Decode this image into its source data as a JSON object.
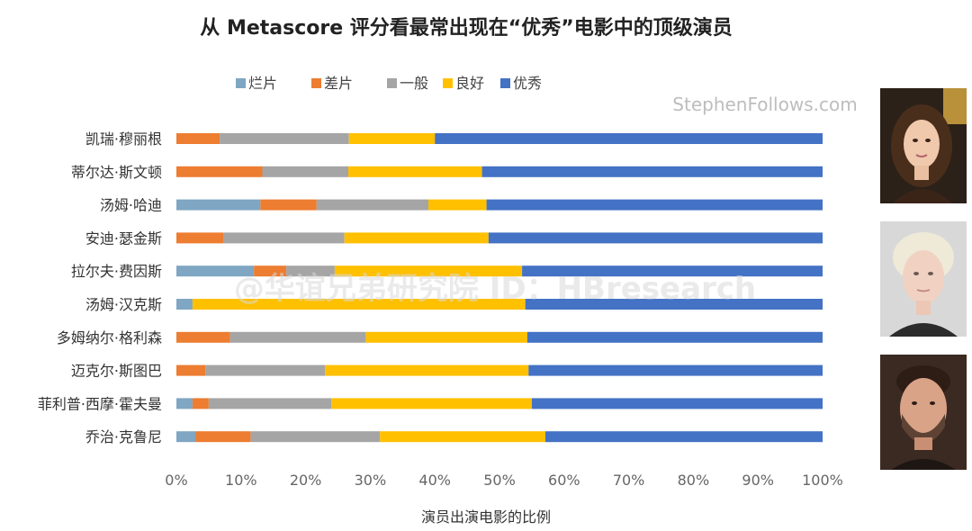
{
  "credit": "StephenFollows.com",
  "watermark": "@华谊兄弟研究院 ID：HBresearch",
  "colors": {
    "烂片": "#7fa6c2",
    "差片": "#ed7d31",
    "一般": "#a5a5a5",
    "良好": "#ffc000",
    "优秀": "#4472c4"
  },
  "photos": [
    {
      "name": "portrait-woman-dark-hair-icon"
    },
    {
      "name": "portrait-platinum-hair-icon"
    },
    {
      "name": "portrait-man-beard-icon"
    }
  ],
  "chart_data": {
    "type": "bar",
    "orientation": "horizontal",
    "stacked": true,
    "title": "从 Metascore 评分看最常出现在“优秀”电影中的顶级演员",
    "xlabel": "演员出演电影的比例",
    "ylabel": "",
    "xlim": [
      0,
      100
    ],
    "x_ticks": [
      "0%",
      "10%",
      "20%",
      "30%",
      "40%",
      "50%",
      "60%",
      "70%",
      "80%",
      "90%",
      "100%"
    ],
    "legend_position": "top",
    "grid": false,
    "categories": [
      "凯瑞·穆丽根",
      "蒂尔达·斯文顿",
      "汤姆·哈迪",
      "安迪·瑟金斯",
      "拉尔夫·费因斯",
      "汤姆·汉克斯",
      "多姆纳尔·格利森",
      "迈克尔·斯图巴",
      "菲利普·西摩·霍夫曼",
      "乔治·克鲁尼"
    ],
    "series": [
      {
        "name": "烂片",
        "values": [
          0,
          0,
          13,
          0,
          12,
          2.5,
          0,
          0,
          2.5,
          3
        ]
      },
      {
        "name": "差片",
        "values": [
          6.7,
          13.3,
          8.7,
          7.3,
          5,
          0,
          8.3,
          4.5,
          2.5,
          8.5
        ]
      },
      {
        "name": "一般",
        "values": [
          20,
          13.3,
          17.3,
          18.7,
          7.5,
          0,
          21,
          18.5,
          19,
          20
        ]
      },
      {
        "name": "良好",
        "values": [
          13.3,
          20.7,
          9,
          22.3,
          29,
          51.5,
          25,
          31.5,
          31,
          25.6
        ]
      },
      {
        "name": "优秀",
        "values": [
          60,
          52.7,
          52,
          51.7,
          46.5,
          46,
          45.7,
          45.5,
          45,
          42.9
        ]
      }
    ]
  }
}
